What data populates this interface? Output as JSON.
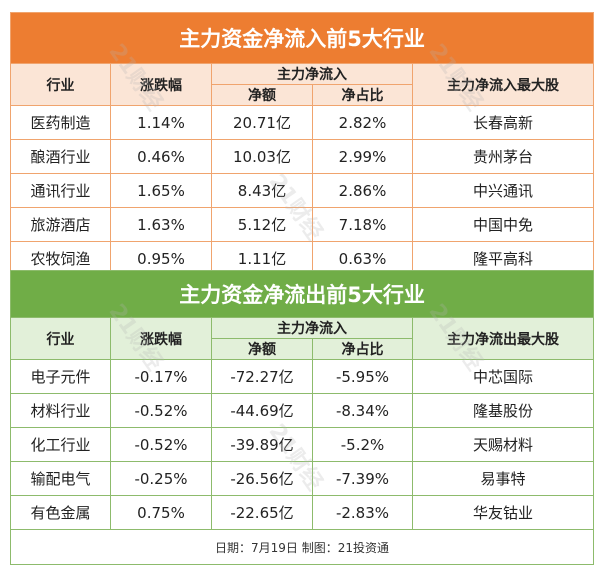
{
  "inflow": {
    "title": "主力资金净流入前5大行业",
    "headers": {
      "industry": "行业",
      "change": "涨跌幅",
      "main": "主力净流入",
      "amount": "净额",
      "ratio": "净占比",
      "top": "主力净流入最大股"
    },
    "rows": [
      [
        "医药制造",
        "1.14%",
        "20.71亿",
        "2.82%",
        "长春高新"
      ],
      [
        "酿酒行业",
        "0.46%",
        "10.03亿",
        "2.99%",
        "贵州茅台"
      ],
      [
        "通讯行业",
        "1.65%",
        "8.43亿",
        "2.86%",
        "中兴通讯"
      ],
      [
        "旅游酒店",
        "1.63%",
        "5.12亿",
        "7.18%",
        "中国中免"
      ],
      [
        "农牧饲渔",
        "0.95%",
        "1.11亿",
        "0.63%",
        "隆平高科"
      ]
    ]
  },
  "outflow": {
    "title": "主力资金净流出前5大行业",
    "headers": {
      "industry": "行业",
      "change": "涨跌幅",
      "main": "主力净流入",
      "amount": "净额",
      "ratio": "净占比",
      "top": "主力净流出最大股"
    },
    "rows": [
      [
        "电子元件",
        "-0.17%",
        "-72.27亿",
        "-5.95%",
        "中芯国际"
      ],
      [
        "材料行业",
        "-0.52%",
        "-44.69亿",
        "-8.34%",
        "隆基股份"
      ],
      [
        "化工行业",
        "-0.52%",
        "-39.89亿",
        "-5.2%",
        "天赐材料"
      ],
      [
        "输配电气",
        "-0.25%",
        "-26.56亿",
        "-7.39%",
        "易事特"
      ],
      [
        "有色金属",
        "0.75%",
        "-22.65亿",
        "-2.83%",
        "华友钴业"
      ]
    ]
  },
  "footer": "日期：7月19日 制图：21投资通",
  "watermark": "21财经"
}
